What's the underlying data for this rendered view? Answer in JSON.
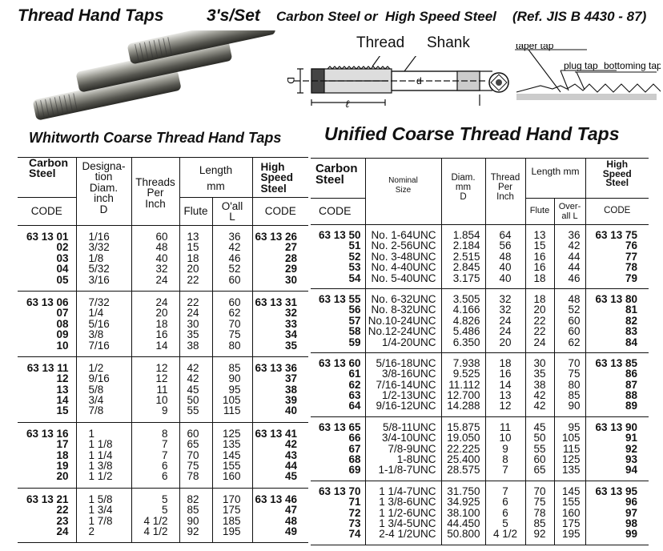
{
  "header": {
    "title": "Thread Hand Taps",
    "set": "3's/Set",
    "material": "Carbon Steel or  High Speed Steel",
    "reference": "(Ref. JIS B 4430 - 87)"
  },
  "diagram": {
    "thread_label": "Thread",
    "shank_label": "Shank",
    "d_upper": "D",
    "d_lower": "d",
    "l_label": "ℓ",
    "taper": "taper tap",
    "plug": "plug tap",
    "bottoming": "bottoming tap"
  },
  "left_table": {
    "title": "Whitworth Coarse Thread Hand Taps",
    "h_carbon": "Carbon Steel",
    "h_code": "CODE",
    "h_designation": "Designa-\ntion\nDiam.\ninch\nD",
    "h_threads": "Threads\nPer\nInch",
    "h_length": "Length\nmm",
    "h_flute": "Flute",
    "h_oall": "O'all\nL",
    "h_hss": "High\nSpeed\nSteel",
    "h_hss_code": "CODE",
    "groups": [
      [
        [
          "63 13 01",
          "1/16",
          "60",
          "13",
          "36",
          "63 13 26"
        ],
        [
          "02",
          "3/32",
          "48",
          "15",
          "42",
          "27"
        ],
        [
          "03",
          "1/8",
          "40",
          "18",
          "46",
          "28"
        ],
        [
          "04",
          "5/32",
          "32",
          "20",
          "52",
          "29"
        ],
        [
          "05",
          "3/16",
          "24",
          "22",
          "60",
          "30"
        ]
      ],
      [
        [
          "63 13 06",
          "7/32",
          "24",
          "22",
          "60",
          "63 13 31"
        ],
        [
          "07",
          "1/4",
          "20",
          "24",
          "62",
          "32"
        ],
        [
          "08",
          "5/16",
          "18",
          "30",
          "70",
          "33"
        ],
        [
          "09",
          "3/8",
          "16",
          "35",
          "75",
          "34"
        ],
        [
          "10",
          "7/16",
          "14",
          "38",
          "80",
          "35"
        ]
      ],
      [
        [
          "63 13 11",
          "1/2",
          "12",
          "42",
          "85",
          "63 13 36"
        ],
        [
          "12",
          "9/16",
          "12",
          "42",
          "90",
          "37"
        ],
        [
          "13",
          "5/8",
          "11",
          "45",
          "95",
          "38"
        ],
        [
          "14",
          "3/4",
          "10",
          "50",
          "105",
          "39"
        ],
        [
          "15",
          "7/8",
          "9",
          "55",
          "115",
          "40"
        ]
      ],
      [
        [
          "63 13 16",
          "1",
          "8",
          "60",
          "125",
          "63 13 41"
        ],
        [
          "17",
          "1 1/8",
          "7",
          "65",
          "135",
          "42"
        ],
        [
          "18",
          "1 1/4",
          "7",
          "70",
          "145",
          "43"
        ],
        [
          "19",
          "1 3/8",
          "6",
          "75",
          "155",
          "44"
        ],
        [
          "20",
          "1 1/2",
          "6",
          "78",
          "160",
          "45"
        ]
      ],
      [
        [
          "63 13 21",
          "1 5/8",
          "5",
          "82",
          "170",
          "63 13 46"
        ],
        [
          "22",
          "1 3/4",
          "5",
          "85",
          "175",
          "47"
        ],
        [
          "23",
          "1 7/8",
          "4 1/2",
          "90",
          "185",
          "48"
        ],
        [
          "24",
          "2",
          "4 1/2",
          "92",
          "195",
          "49"
        ]
      ]
    ]
  },
  "right_table": {
    "title": "Unified Coarse Thread Hand Taps",
    "h_carbon": "Carbon\nSteel",
    "h_code": "CODE",
    "h_nominal": "Nominal\nSize",
    "h_diam": "Diam.\nmm\nD",
    "h_thread": "Thread\nPer\nInch",
    "h_length": "Length mm",
    "h_flute": "Flute",
    "h_overall": "Over-\nall L",
    "h_hss": "High\nSpeed\nSteel",
    "h_hss_code": "CODE",
    "groups": [
      [
        [
          "63 13 50",
          "No.  1-64UNC",
          "1.854",
          "64",
          "13",
          "36",
          "63 13 75"
        ],
        [
          "51",
          "No.  2-56UNC",
          "2.184",
          "56",
          "15",
          "42",
          "76"
        ],
        [
          "52",
          "No.  3-48UNC",
          "2.515",
          "48",
          "16",
          "44",
          "77"
        ],
        [
          "53",
          "No.  4-40UNC",
          "2.845",
          "40",
          "16",
          "44",
          "78"
        ],
        [
          "54",
          "No.  5-40UNC",
          "3.175",
          "40",
          "18",
          "46",
          "79"
        ]
      ],
      [
        [
          "63 13 55",
          "No.  6-32UNC",
          "3.505",
          "32",
          "18",
          "48",
          "63 13 80"
        ],
        [
          "56",
          "No.  8-32UNC",
          "4.166",
          "32",
          "20",
          "52",
          "81"
        ],
        [
          "57",
          "No.10-24UNC",
          "4.826",
          "24",
          "22",
          "60",
          "82"
        ],
        [
          "58",
          "No.12-24UNC",
          "5.486",
          "24",
          "22",
          "60",
          "83"
        ],
        [
          "59",
          "1/4-20UNC",
          "6.350",
          "20",
          "24",
          "62",
          "84"
        ]
      ],
      [
        [
          "63 13 60",
          "5/16-18UNC",
          "7.938",
          "18",
          "30",
          "70",
          "63 13 85"
        ],
        [
          "61",
          "3/8-16UNC",
          "9.525",
          "16",
          "35",
          "75",
          "86"
        ],
        [
          "62",
          "7/16-14UNC",
          "11.112",
          "14",
          "38",
          "80",
          "87"
        ],
        [
          "63",
          "1/2-13UNC",
          "12.700",
          "13",
          "42",
          "85",
          "88"
        ],
        [
          "64",
          "9/16-12UNC",
          "14.288",
          "12",
          "42",
          "90",
          "89"
        ]
      ],
      [
        [
          "63 13 65",
          "5/8-11UNC",
          "15.875",
          "11",
          "45",
          "95",
          "63 13 90"
        ],
        [
          "66",
          "3/4-10UNC",
          "19.050",
          "10",
          "50",
          "105",
          "91"
        ],
        [
          "67",
          "7/8-9UNC",
          "22.225",
          "9",
          "55",
          "115",
          "92"
        ],
        [
          "68",
          "1-8UNC",
          "25.400",
          "8",
          "60",
          "125",
          "93"
        ],
        [
          "69",
          "1-1/8-7UNC",
          "28.575",
          "7",
          "65",
          "135",
          "94"
        ]
      ],
      [
        [
          "63 13 70",
          "1 1/4-7UNC",
          "31.750",
          "7",
          "70",
          "145",
          "63 13 95"
        ],
        [
          "71",
          "1 3/8-6UNC",
          "34.925",
          "6",
          "75",
          "155",
          "96"
        ],
        [
          "72",
          "1 1/2-6UNC",
          "38.100",
          "6",
          "78",
          "160",
          "97"
        ],
        [
          "73",
          "1 3/4-5UNC",
          "44.450",
          "5",
          "85",
          "175",
          "98"
        ],
        [
          "74",
          "2-4 1/2UNC",
          "50.800",
          "4 1/2",
          "92",
          "195",
          "99"
        ]
      ]
    ]
  }
}
